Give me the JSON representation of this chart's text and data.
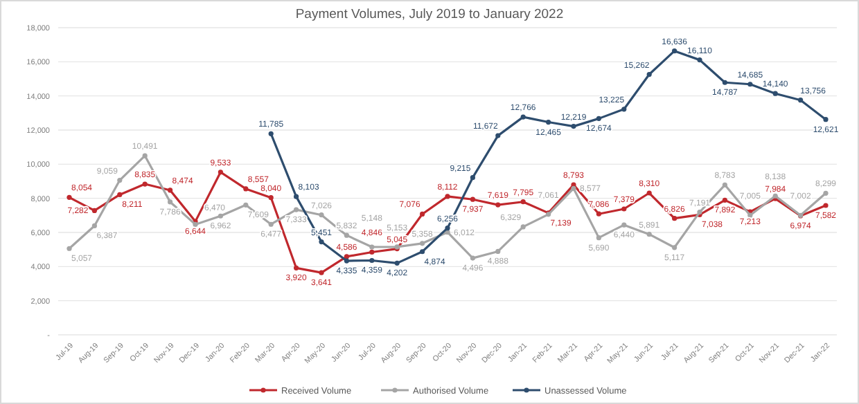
{
  "chart_data": {
    "type": "line",
    "title": "Payment Volumes, July 2019 to January 2022",
    "categories": [
      "Jul-19",
      "Aug-19",
      "Sep-19",
      "Oct-19",
      "Nov-19",
      "Dec-19",
      "Jan-20",
      "Feb-20",
      "Mar-20",
      "Apr-20",
      "May-20",
      "Jun-20",
      "Jul-20",
      "Aug-20",
      "Sep-20",
      "Oct-20",
      "Nov-20",
      "Dec-20",
      "Jan-21",
      "Feb-21",
      "Mar-21",
      "Apr-21",
      "May-21",
      "Jun-21",
      "Jul-21",
      "Aug-21",
      "Sep-21",
      "Oct-21",
      "Nov-21",
      "Dec-21",
      "Jan-22"
    ],
    "series": [
      {
        "name": "Received Volume",
        "color": "#c0282d",
        "values": [
          8054,
          7282,
          8211,
          8835,
          8474,
          6644,
          9533,
          8557,
          8040,
          3920,
          3641,
          4586,
          4846,
          5045,
          7076,
          8112,
          7937,
          7619,
          7795,
          7139,
          8793,
          7086,
          7379,
          8310,
          6826,
          7038,
          7892,
          7213,
          7984,
          6974,
          7582
        ],
        "value_labels": [
          "8,054",
          "7,282",
          "8,211",
          "8,835",
          "8,474",
          "6,644",
          "9,533",
          "8,557",
          "8,040",
          "3,920",
          "3,641",
          "4,586",
          "4,846",
          "5,045",
          "7,076",
          "8,112",
          "7,937",
          "7,619",
          "7,795",
          "7,139",
          "8,793",
          "7,086",
          "7,379",
          "8,310",
          "6,826",
          "7,038",
          "7,892",
          "7,213",
          "7,984",
          "6,974",
          "7,582"
        ]
      },
      {
        "name": "Authorised Volume",
        "color": "#a5a5a5",
        "values": [
          5057,
          6387,
          9059,
          10491,
          7786,
          6470,
          6962,
          7609,
          6477,
          7333,
          7026,
          5832,
          5148,
          5153,
          5358,
          6012,
          4496,
          4888,
          6329,
          7061,
          8577,
          5690,
          6440,
          5891,
          5117,
          7191,
          8783,
          7005,
          8138,
          7002,
          8299
        ],
        "value_labels": [
          "5,057",
          "6,387",
          "9,059",
          "10,491",
          "7,786",
          "6,470",
          "6,962",
          "7,609",
          "6,477",
          "7,333",
          "7,026",
          "5,832",
          "5,148",
          "5,153",
          "5,358",
          "6,012",
          "4,496",
          "4,888",
          "6,329",
          "7,061",
          "8,577",
          "5,690",
          "6,440",
          "5,891",
          "5,117",
          "7,191",
          "8,783",
          "7,005",
          "8,138",
          "7,002",
          "8,299"
        ]
      },
      {
        "name": "Unassessed Volume",
        "color": "#2e4d6e",
        "values": [
          null,
          null,
          null,
          null,
          null,
          null,
          null,
          null,
          11785,
          8103,
          5451,
          4335,
          4359,
          4202,
          4874,
          6256,
          9215,
          11672,
          12766,
          12465,
          12219,
          12674,
          13225,
          15262,
          16636,
          16110,
          14787,
          14685,
          14140,
          13756,
          12621
        ],
        "value_labels": [
          null,
          null,
          null,
          null,
          null,
          null,
          null,
          null,
          "11,785",
          "8,103",
          "5,451",
          "4,335",
          "4,359",
          "4,202",
          "4,874",
          "6,256",
          "9,215",
          "11,672",
          "12,766",
          "12,465",
          "12,219",
          "12,674",
          "13,225",
          "15,262",
          "16,636",
          "16,110",
          "14,787",
          "14,685",
          "14,140",
          "13,756",
          "12,621"
        ]
      }
    ],
    "ylim": [
      0,
      18000
    ],
    "yticks": [
      {
        "value": 0,
        "label": "-"
      },
      {
        "value": 2000,
        "label": "2,000"
      },
      {
        "value": 4000,
        "label": "4,000"
      },
      {
        "value": 6000,
        "label": "6,000"
      },
      {
        "value": 8000,
        "label": "8,000"
      },
      {
        "value": 10000,
        "label": "10,000"
      },
      {
        "value": 12000,
        "label": "12,000"
      },
      {
        "value": 14000,
        "label": "14,000"
      },
      {
        "value": 16000,
        "label": "16,000"
      },
      {
        "value": 18000,
        "label": "18,000"
      }
    ],
    "grid": "y",
    "legend": "bottom",
    "marker": "circle",
    "line_style": "solid"
  }
}
